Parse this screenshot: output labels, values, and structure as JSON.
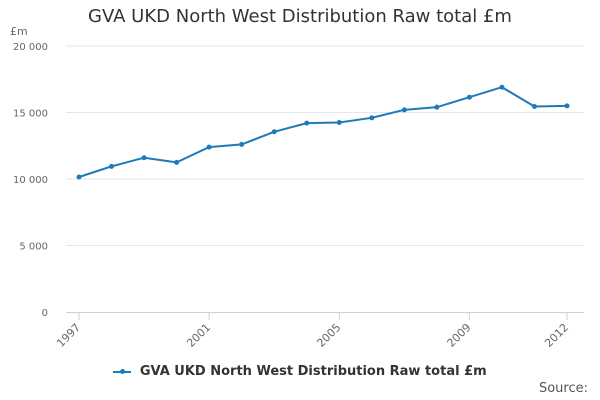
{
  "chart_data": {
    "type": "line",
    "title": "GVA UKD North West Distribution Raw total £m",
    "ylabel": "£m",
    "xlabel": "",
    "x": [
      1997,
      1998,
      1999,
      2000,
      2001,
      2002,
      2003,
      2004,
      2005,
      2006,
      2007,
      2008,
      2009,
      2010,
      2011,
      2012
    ],
    "x_tick_labels": [
      "1997",
      "2001",
      "2005",
      "2009",
      "2012"
    ],
    "y_tick_labels": [
      "0",
      "5 000",
      "10 000",
      "15 000",
      "20 000"
    ],
    "y_ticks": [
      0,
      5000,
      10000,
      15000,
      20000
    ],
    "ylim": [
      0,
      20000
    ],
    "xlim": [
      1997,
      2012
    ],
    "series": [
      {
        "name": "GVA UKD North West Distribution Raw total £m",
        "values": [
          10150,
          10950,
          11600,
          11250,
          12400,
          12600,
          13550,
          14200,
          14250,
          14600,
          15200,
          15400,
          16150,
          16900,
          15450,
          15500
        ],
        "color": "#1f7bb8"
      }
    ],
    "grid": true,
    "legend_position": "bottom"
  },
  "footer": {
    "source_label": "Source:"
  }
}
